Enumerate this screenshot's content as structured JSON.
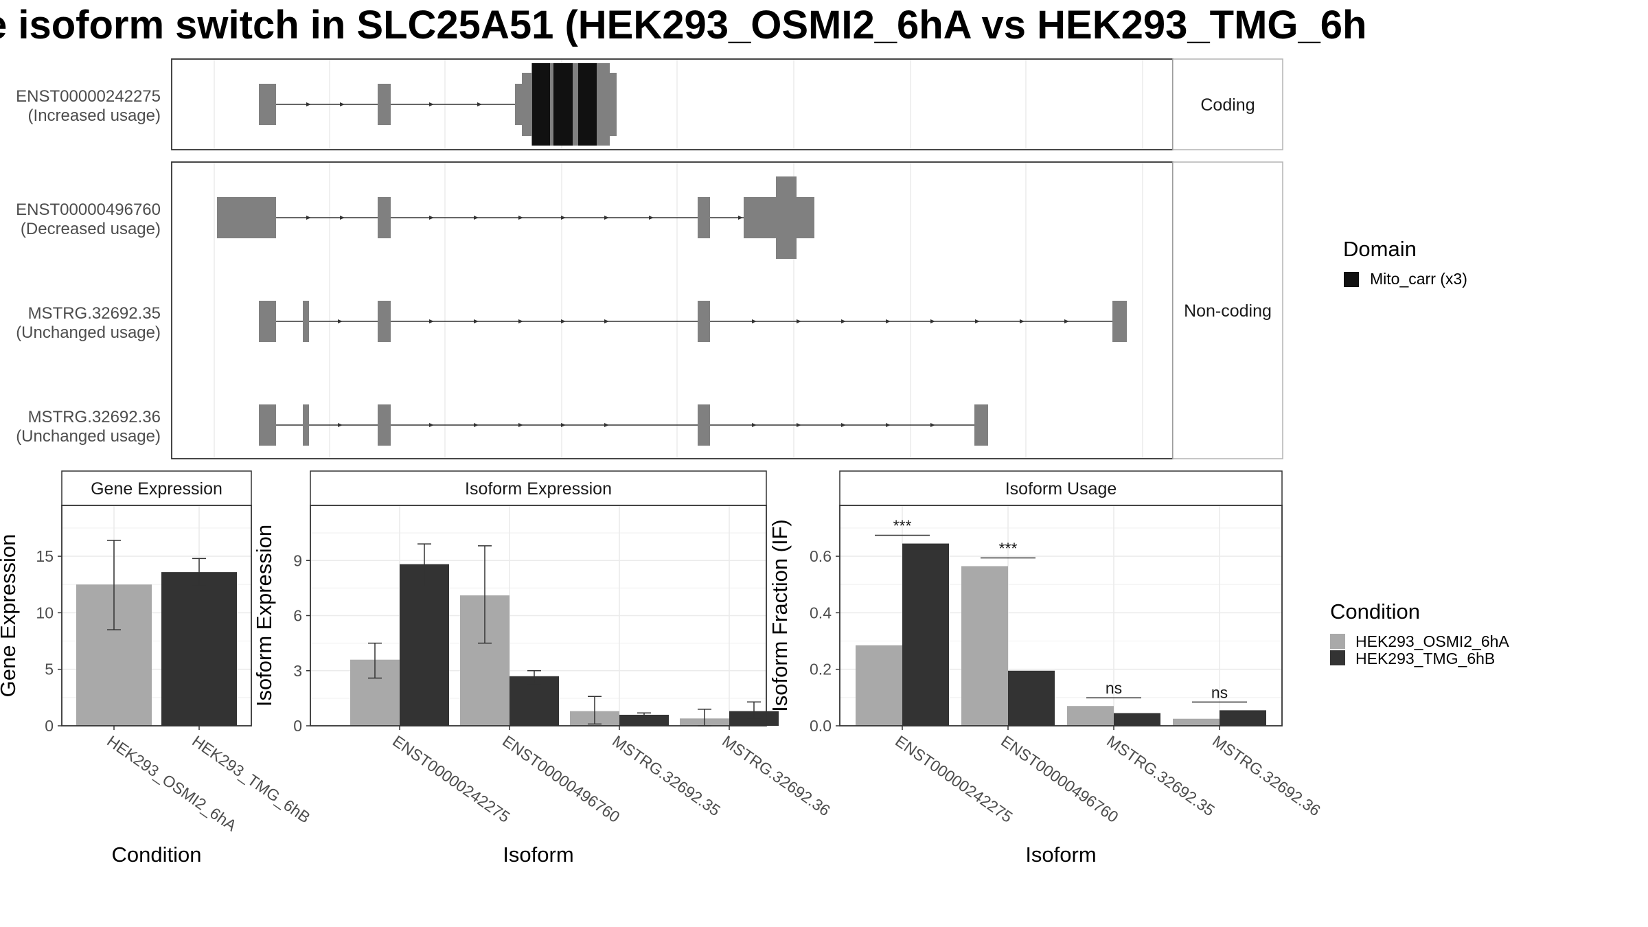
{
  "title": "e isoform switch in SLC25A51 (HEK293_OSMI2_6hA vs HEK293_TMG_6h",
  "colors": {
    "condA": "#a9a9a9",
    "condB": "#333333",
    "exon": "#808080",
    "domain": "#111111",
    "grid": "#ebebeb",
    "strip_fill": "#f2f2f2",
    "strip_border": "#b3b3b3"
  },
  "structure": {
    "facets": [
      "Coding",
      "Non-coding"
    ],
    "transcripts": [
      {
        "id": "ENST00000242275",
        "usage": "(Increased usage)",
        "facet": "Coding"
      },
      {
        "id": "ENST00000496760",
        "usage": "(Decreased usage)",
        "facet": "Non-coding"
      },
      {
        "id": "MSTRG.32692.35",
        "usage": "(Unchanged usage)",
        "facet": "Non-coding"
      },
      {
        "id": "MSTRG.32692.36",
        "usage": "(Unchanged usage)",
        "facet": "Non-coding"
      }
    ]
  },
  "legends": {
    "domain_title": "Domain",
    "domain_items": [
      "Mito_carr (x3)"
    ],
    "condition_title": "Condition",
    "condition_items": [
      "HEK293_OSMI2_6hA",
      "HEK293_TMG_6hB"
    ]
  },
  "chart_data": [
    {
      "type": "bar",
      "title": "Gene Expression",
      "xlabel": "Condition",
      "ylabel": "Gene Expression",
      "categories": [
        "HEK293_OSMI2_6hA",
        "HEK293_TMG_6hB"
      ],
      "values": [
        12.5,
        13.6
      ],
      "error_low": [
        8.5,
        12.4
      ],
      "error_high": [
        16.4,
        14.8
      ],
      "ylim": [
        0,
        19.5
      ],
      "yticks": [
        0,
        5,
        10,
        15
      ]
    },
    {
      "type": "bar",
      "title": "Isoform Expression",
      "xlabel": "Isoform",
      "ylabel": "Isoform Expression",
      "categories": [
        "ENST00000242275",
        "ENST00000496760",
        "MSTRG.32692.35",
        "MSTRG.32692.36"
      ],
      "series": [
        {
          "name": "HEK293_OSMI2_6hA",
          "values": [
            3.6,
            7.1,
            0.8,
            0.4
          ],
          "error_low": [
            2.6,
            4.5,
            0.1,
            0.0
          ],
          "error_high": [
            4.5,
            9.8,
            1.6,
            0.9
          ]
        },
        {
          "name": "HEK293_TMG_6hB",
          "values": [
            8.8,
            2.7,
            0.6,
            0.8
          ],
          "error_low": [
            7.6,
            2.3,
            0.5,
            0.35
          ],
          "error_high": [
            9.9,
            3.0,
            0.7,
            1.3
          ]
        }
      ],
      "ylim": [
        0,
        12
      ],
      "yticks": [
        0,
        3,
        6,
        9
      ]
    },
    {
      "type": "bar",
      "title": "Isoform Usage",
      "xlabel": "Isoform",
      "ylabel": "Isoform Fraction (IF)",
      "categories": [
        "ENST00000242275",
        "ENST00000496760",
        "MSTRG.32692.35",
        "MSTRG.32692.36"
      ],
      "series": [
        {
          "name": "HEK293_OSMI2_6hA",
          "values": [
            0.285,
            0.565,
            0.07,
            0.025
          ]
        },
        {
          "name": "HEK293_TMG_6hB",
          "values": [
            0.645,
            0.195,
            0.045,
            0.055
          ]
        }
      ],
      "significance": [
        "***",
        "***",
        "ns",
        "ns"
      ],
      "ylim": [
        0,
        0.78
      ],
      "yticks": [
        0.0,
        0.2,
        0.4,
        0.6
      ],
      "ytick_labels": [
        "0.0",
        "0.2",
        "0.4",
        "0.6"
      ]
    }
  ]
}
